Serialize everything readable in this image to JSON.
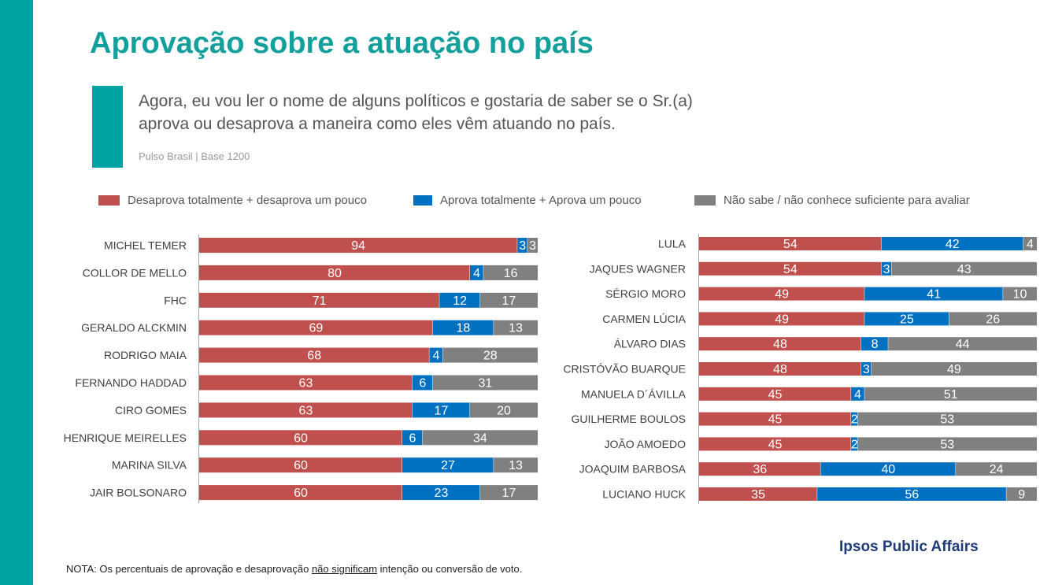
{
  "title": "Aprovação sobre a atuação no país",
  "question": "Agora, eu vou ler o nome de alguns políticos e gostaria de saber se o Sr.(a) aprova ou desaprova a maneira como eles vêm atuando no país.",
  "source": "Pulso Brasil | Base 1200",
  "colors": {
    "accent": "#00a3a3",
    "title": "#13a09c",
    "disapprove": "#c0504d",
    "approve": "#0070c0",
    "unknown": "#808080"
  },
  "legend": [
    {
      "label": "Desaprova totalmente + desaprova um pouco",
      "color": "#c0504d"
    },
    {
      "label": "Aprova totalmente + Aprova um pouco",
      "color": "#0070c0"
    },
    {
      "label": "Não sabe / não conhece suficiente para avaliar",
      "color": "#808080"
    }
  ],
  "chart_data": [
    {
      "type": "bar",
      "orientation": "horizontal",
      "stacked": true,
      "categories": [
        "MICHEL TEMER",
        "COLLOR DE MELLO",
        "FHC",
        "GERALDO ALCKMIN",
        "RODRIGO MAIA",
        "FERNANDO HADDAD",
        "CIRO GOMES",
        "HENRIQUE MEIRELLES",
        "MARINA SILVA",
        "JAIR BOLSONARO"
      ],
      "series": [
        {
          "name": "Desaprova totalmente + desaprova um pouco",
          "values": [
            94,
            80,
            71,
            69,
            68,
            63,
            63,
            60,
            60,
            60
          ]
        },
        {
          "name": "Aprova totalmente + Aprova um pouco",
          "values": [
            3,
            4,
            12,
            18,
            4,
            6,
            17,
            6,
            27,
            23
          ]
        },
        {
          "name": "Não sabe / não conhece suficiente para avaliar",
          "values": [
            3,
            16,
            17,
            13,
            28,
            31,
            20,
            34,
            13,
            17
          ]
        }
      ]
    },
    {
      "type": "bar",
      "orientation": "horizontal",
      "stacked": true,
      "categories": [
        "LULA",
        "JAQUES WAGNER",
        "SÉRGIO MORO",
        "CARMEN LÚCIA",
        "ÁLVARO DIAS",
        "CRISTÓVÃO BUARQUE",
        "MANUELA D´ÁVILLA",
        "GUILHERME BOULOS",
        "JOÃO AMOEDO",
        "JOAQUIM BARBOSA",
        "LUCIANO HUCK"
      ],
      "series": [
        {
          "name": "Desaprova totalmente + desaprova um pouco",
          "values": [
            54,
            54,
            49,
            49,
            48,
            48,
            45,
            45,
            45,
            36,
            35
          ]
        },
        {
          "name": "Aprova totalmente + Aprova um pouco",
          "values": [
            42,
            3,
            41,
            25,
            8,
            3,
            4,
            2,
            2,
            40,
            56
          ]
        },
        {
          "name": "Não sabe / não conhece suficiente para avaliar",
          "values": [
            4,
            43,
            10,
            26,
            44,
            49,
            51,
            53,
            53,
            24,
            9
          ]
        }
      ]
    }
  ],
  "brand": "Ipsos Public Affairs",
  "note": {
    "prefix": "NOTA: Os percentuais de aprovação e desaprovação ",
    "underlined": "não significam",
    "suffix": " intenção ou conversão de voto."
  }
}
